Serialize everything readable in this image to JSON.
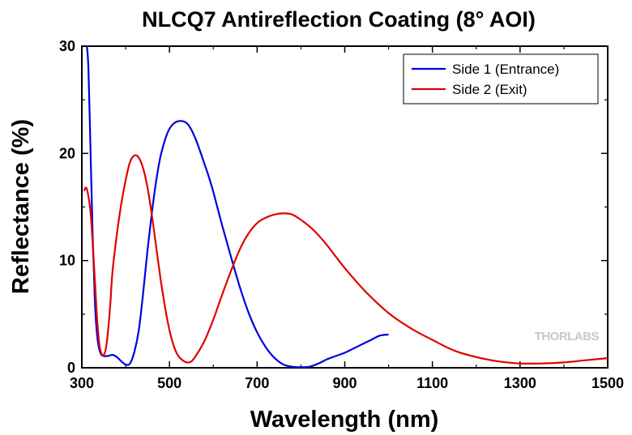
{
  "chart_data": {
    "type": "line",
    "title": "NLCQ7 Antireflection Coating (8° AOI)",
    "xlabel": "Wavelength (nm)",
    "ylabel": "Reflectance (%)",
    "xlim": [
      300,
      1500
    ],
    "ylim": [
      0,
      30
    ],
    "xticks": [
      300,
      500,
      700,
      900,
      1100,
      1300,
      1500
    ],
    "yticks": [
      0,
      10,
      20,
      30
    ],
    "grid": false,
    "legend_position": "top-right",
    "series": [
      {
        "name": "Side 1 (Entrance)",
        "color": "#0000e0",
        "points": [
          [
            310,
            30.5
          ],
          [
            315,
            28
          ],
          [
            320,
            20
          ],
          [
            325,
            12
          ],
          [
            330,
            6
          ],
          [
            335,
            3
          ],
          [
            340,
            1.7
          ],
          [
            345,
            1.2
          ],
          [
            350,
            1.1
          ],
          [
            360,
            1.1
          ],
          [
            370,
            1.2
          ],
          [
            380,
            1.0
          ],
          [
            390,
            0.6
          ],
          [
            400,
            0.3
          ],
          [
            410,
            0.4
          ],
          [
            420,
            1.5
          ],
          [
            430,
            3.5
          ],
          [
            440,
            7
          ],
          [
            450,
            11
          ],
          [
            460,
            14.5
          ],
          [
            470,
            17.5
          ],
          [
            480,
            19.8
          ],
          [
            490,
            21.3
          ],
          [
            500,
            22.3
          ],
          [
            510,
            22.8
          ],
          [
            520,
            23.0
          ],
          [
            530,
            23.0
          ],
          [
            540,
            22.8
          ],
          [
            550,
            22.2
          ],
          [
            560,
            21.3
          ],
          [
            570,
            20.2
          ],
          [
            580,
            19.0
          ],
          [
            590,
            17.8
          ],
          [
            600,
            16.4
          ],
          [
            620,
            13.3
          ],
          [
            640,
            10.4
          ],
          [
            660,
            7.6
          ],
          [
            680,
            5.2
          ],
          [
            700,
            3.3
          ],
          [
            720,
            1.9
          ],
          [
            740,
            0.9
          ],
          [
            760,
            0.3
          ],
          [
            780,
            0.1
          ],
          [
            800,
            0.05
          ],
          [
            820,
            0.1
          ],
          [
            840,
            0.4
          ],
          [
            860,
            0.8
          ],
          [
            880,
            1.1
          ],
          [
            900,
            1.4
          ],
          [
            920,
            1.8
          ],
          [
            940,
            2.2
          ],
          [
            960,
            2.6
          ],
          [
            980,
            3.0
          ],
          [
            1000,
            3.1
          ]
        ]
      },
      {
        "name": "Side 2 (Exit)",
        "color": "#e00000",
        "points": [
          [
            305,
            16.5
          ],
          [
            310,
            16.8
          ],
          [
            315,
            16
          ],
          [
            320,
            14.5
          ],
          [
            325,
            11.5
          ],
          [
            330,
            8
          ],
          [
            335,
            4.5
          ],
          [
            340,
            2.2
          ],
          [
            345,
            1.3
          ],
          [
            350,
            1.2
          ],
          [
            355,
            1.8
          ],
          [
            360,
            3.5
          ],
          [
            365,
            6
          ],
          [
            370,
            9
          ],
          [
            380,
            12.5
          ],
          [
            390,
            15.3
          ],
          [
            400,
            17.5
          ],
          [
            410,
            19.2
          ],
          [
            420,
            19.8
          ],
          [
            430,
            19.6
          ],
          [
            440,
            18.6
          ],
          [
            450,
            16.8
          ],
          [
            460,
            14.2
          ],
          [
            470,
            11.2
          ],
          [
            480,
            8.2
          ],
          [
            490,
            5.6
          ],
          [
            500,
            3.5
          ],
          [
            510,
            2.0
          ],
          [
            520,
            1.1
          ],
          [
            530,
            0.7
          ],
          [
            540,
            0.5
          ],
          [
            550,
            0.6
          ],
          [
            560,
            1.1
          ],
          [
            580,
            2.5
          ],
          [
            600,
            4.5
          ],
          [
            620,
            6.8
          ],
          [
            640,
            9.0
          ],
          [
            660,
            11.0
          ],
          [
            680,
            12.5
          ],
          [
            700,
            13.5
          ],
          [
            720,
            14.0
          ],
          [
            740,
            14.3
          ],
          [
            760,
            14.4
          ],
          [
            780,
            14.3
          ],
          [
            800,
            13.8
          ],
          [
            830,
            12.8
          ],
          [
            860,
            11.4
          ],
          [
            900,
            9.3
          ],
          [
            950,
            7.0
          ],
          [
            1000,
            5.1
          ],
          [
            1050,
            3.7
          ],
          [
            1100,
            2.6
          ],
          [
            1150,
            1.6
          ],
          [
            1200,
            1.0
          ],
          [
            1250,
            0.6
          ],
          [
            1300,
            0.4
          ],
          [
            1350,
            0.4
          ],
          [
            1400,
            0.5
          ],
          [
            1450,
            0.7
          ],
          [
            1500,
            0.9
          ]
        ]
      }
    ]
  },
  "watermark": "THORLABS"
}
